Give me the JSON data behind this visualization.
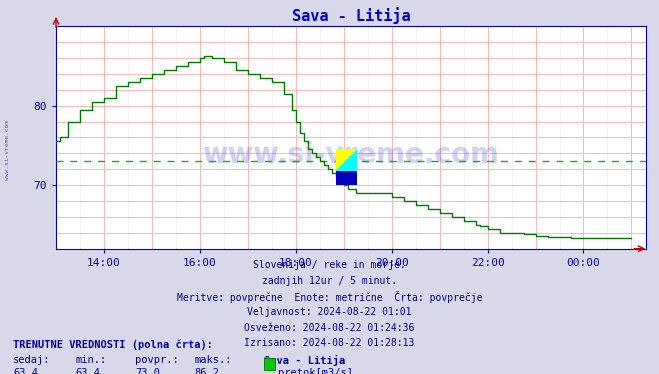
{
  "title": "Sava - Litija",
  "title_color": "#0000cc",
  "bg_color": "#d8d8e8",
  "plot_bg_color": "#ffffff",
  "line_color": "#007700",
  "avg_line_color": "#00bb00",
  "avg_value": 73.0,
  "ylim_min": 62,
  "ylim_max": 90,
  "yticks": [
    70,
    80
  ],
  "x_tick_positions": [
    14,
    16,
    18,
    20,
    22,
    24
  ],
  "x_tick_labels": [
    "14:00",
    "16:00",
    "18:00",
    "20:00",
    "22:00",
    "00:00"
  ],
  "watermark": "www.si-vreme.com",
  "subtitle_lines": [
    "Slovenija / reke in morje.",
    "zadnjih 12ur / 5 minut.",
    "Meritve: povprečne  Enote: metrične  Črta: povprečje",
    "Veljavnost: 2024-08-22 01:01",
    "Osveženo: 2024-08-22 01:24:36",
    "Izrisano: 2024-08-22 01:28:13"
  ],
  "footer_label1": "TRENUTNE VREDNOSTI (polna črta):",
  "footer_cols": [
    "sedaj:",
    "min.:",
    "povpr.:",
    "maks.:",
    "Sava - Litija"
  ],
  "footer_vals": [
    "63,4",
    "63,4",
    "73,0",
    "86,2"
  ],
  "footer_legend": "pretok[m3/s]",
  "legend_color": "#00cc00",
  "time_x": [
    13.0,
    13.083,
    13.25,
    13.5,
    13.75,
    14.0,
    14.25,
    14.5,
    14.75,
    15.0,
    15.25,
    15.5,
    15.75,
    16.0,
    16.083,
    16.25,
    16.5,
    16.75,
    17.0,
    17.25,
    17.5,
    17.75,
    17.917,
    18.0,
    18.083,
    18.167,
    18.25,
    18.333,
    18.417,
    18.5,
    18.583,
    18.667,
    18.75,
    18.833,
    18.917,
    19.0,
    19.083,
    19.25,
    19.5,
    19.75,
    20.0,
    20.25,
    20.5,
    20.75,
    21.0,
    21.25,
    21.5,
    21.75,
    21.833,
    22.0,
    22.083,
    22.25,
    22.5,
    22.75,
    23.0,
    23.25,
    23.5,
    23.75,
    24.0,
    24.25,
    24.5,
    24.75,
    25.0
  ],
  "flow_y": [
    75.5,
    76.0,
    78.0,
    79.5,
    80.5,
    81.0,
    82.5,
    83.0,
    83.5,
    84.0,
    84.5,
    85.0,
    85.5,
    86.0,
    86.2,
    86.0,
    85.5,
    84.5,
    84.0,
    83.5,
    83.0,
    81.5,
    79.5,
    78.0,
    76.5,
    75.5,
    74.5,
    74.0,
    73.5,
    73.0,
    72.5,
    72.0,
    71.5,
    71.0,
    70.5,
    70.0,
    69.5,
    69.0,
    69.0,
    69.0,
    68.5,
    68.0,
    67.5,
    67.0,
    66.5,
    66.0,
    65.5,
    65.0,
    64.8,
    64.5,
    64.5,
    64.0,
    64.0,
    63.8,
    63.6,
    63.5,
    63.5,
    63.4,
    63.4,
    63.4,
    63.4,
    63.4,
    63.4
  ]
}
